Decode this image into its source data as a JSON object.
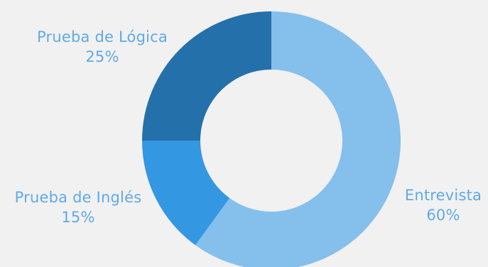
{
  "chart_data": {
    "type": "pie",
    "title": "",
    "donut": true,
    "legend": "none",
    "slices": [
      {
        "label": "Entrevista",
        "value": 60,
        "value_label": "60%",
        "color": "#85bfec"
      },
      {
        "label": "Prueba de Inglés",
        "value": 15,
        "value_label": "15%",
        "color": "#3497e2"
      },
      {
        "label": "Prueba de Lógica",
        "value": 25,
        "value_label": "25%",
        "color": "#2470ab"
      }
    ],
    "label_color": "#5faae8",
    "background": "#f1f1f1"
  }
}
